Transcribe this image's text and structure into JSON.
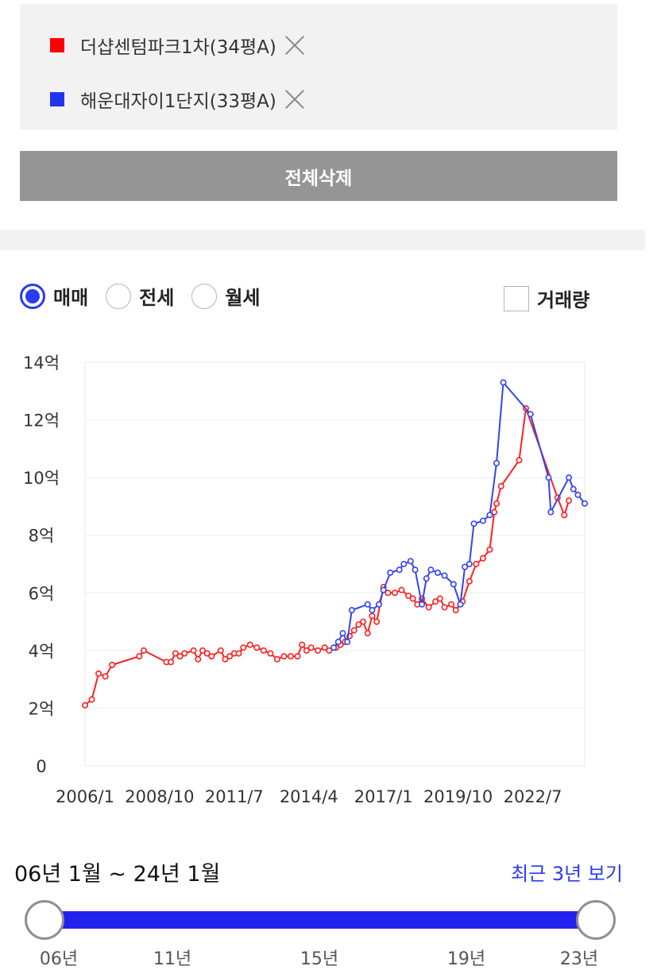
{
  "compare": {
    "items": [
      {
        "label": "더샵센텀파크1차(34평A)",
        "color": "#ff0000"
      },
      {
        "label": "해운대자이1단지(33평A)",
        "color": "#2233ee"
      }
    ],
    "delete_all_label": "전체삭제"
  },
  "options": {
    "radios": [
      {
        "label": "매매",
        "selected": true
      },
      {
        "label": "전세",
        "selected": false
      },
      {
        "label": "월세",
        "selected": false
      }
    ],
    "volume_label": "거래량",
    "volume_checked": false
  },
  "chart_data": {
    "type": "line",
    "y_ticks": [
      "0",
      "2억",
      "4억",
      "6억",
      "8억",
      "10억",
      "12억",
      "14억"
    ],
    "ylim": [
      0,
      14
    ],
    "x_ticks": [
      "2006/1",
      "2008/10",
      "2011/7",
      "2014/4",
      "2017/1",
      "2019/10",
      "2022/7"
    ],
    "xlim": [
      "2006/1",
      "2024/1"
    ],
    "grid": true,
    "series": [
      {
        "name": "더샵센텀파크1차(34평A)",
        "color": "#ff2020",
        "points": [
          [
            "2006/1",
            2.1
          ],
          [
            "2006/4",
            2.3
          ],
          [
            "2006/7",
            3.2
          ],
          [
            "2006/10",
            3.1
          ],
          [
            "2007/1",
            3.5
          ],
          [
            "2008/1",
            3.8
          ],
          [
            "2008/3",
            4.0
          ],
          [
            "2009/1",
            3.6
          ],
          [
            "2009/3",
            3.6
          ],
          [
            "2009/5",
            3.9
          ],
          [
            "2009/7",
            3.8
          ],
          [
            "2009/9",
            3.9
          ],
          [
            "2010/1",
            4.0
          ],
          [
            "2010/3",
            3.7
          ],
          [
            "2010/5",
            4.0
          ],
          [
            "2010/7",
            3.9
          ],
          [
            "2010/9",
            3.8
          ],
          [
            "2011/1",
            4.0
          ],
          [
            "2011/3",
            3.7
          ],
          [
            "2011/5",
            3.8
          ],
          [
            "2011/7",
            3.9
          ],
          [
            "2011/9",
            3.9
          ],
          [
            "2011/11",
            4.1
          ],
          [
            "2012/2",
            4.2
          ],
          [
            "2012/5",
            4.1
          ],
          [
            "2012/8",
            4.0
          ],
          [
            "2012/11",
            3.9
          ],
          [
            "2013/2",
            3.7
          ],
          [
            "2013/5",
            3.8
          ],
          [
            "2013/8",
            3.8
          ],
          [
            "2013/11",
            3.8
          ],
          [
            "2014/1",
            4.2
          ],
          [
            "2014/3",
            4.0
          ],
          [
            "2014/5",
            4.1
          ],
          [
            "2014/8",
            4.0
          ],
          [
            "2014/11",
            4.1
          ],
          [
            "2015/1",
            4.0
          ],
          [
            "2015/4",
            4.1
          ],
          [
            "2015/6",
            4.2
          ],
          [
            "2015/8",
            4.3
          ],
          [
            "2015/10",
            4.5
          ],
          [
            "2015/12",
            4.7
          ],
          [
            "2016/2",
            4.9
          ],
          [
            "2016/4",
            5.0
          ],
          [
            "2016/6",
            4.6
          ],
          [
            "2016/8",
            5.2
          ],
          [
            "2016/10",
            5.0
          ],
          [
            "2017/1",
            6.2
          ],
          [
            "2017/3",
            6.0
          ],
          [
            "2017/6",
            6.0
          ],
          [
            "2017/9",
            6.1
          ],
          [
            "2017/12",
            5.9
          ],
          [
            "2018/2",
            5.8
          ],
          [
            "2018/4",
            5.6
          ],
          [
            "2018/6",
            5.8
          ],
          [
            "2018/9",
            5.5
          ],
          [
            "2018/12",
            5.7
          ],
          [
            "2019/2",
            5.8
          ],
          [
            "2019/4",
            5.5
          ],
          [
            "2019/7",
            5.6
          ],
          [
            "2019/9",
            5.4
          ],
          [
            "2019/12",
            5.7
          ],
          [
            "2020/3",
            6.4
          ],
          [
            "2020/6",
            7.0
          ],
          [
            "2020/9",
            7.2
          ],
          [
            "2020/12",
            7.5
          ],
          [
            "2021/2",
            8.8
          ],
          [
            "2021/3",
            9.1
          ],
          [
            "2021/5",
            9.7
          ],
          [
            "2022/1",
            10.6
          ],
          [
            "2022/4",
            12.4
          ],
          [
            "2023/6",
            9.3
          ],
          [
            "2023/9",
            8.7
          ],
          [
            "2023/11",
            9.2
          ]
        ]
      },
      {
        "name": "해운대자이1단지(33평A)",
        "color": "#3344ee",
        "points": [
          [
            "2015/3",
            4.1
          ],
          [
            "2015/5",
            4.3
          ],
          [
            "2015/7",
            4.6
          ],
          [
            "2015/9",
            4.3
          ],
          [
            "2015/11",
            5.4
          ],
          [
            "2016/6",
            5.6
          ],
          [
            "2016/8",
            5.4
          ],
          [
            "2016/11",
            5.6
          ],
          [
            "2017/1",
            6.1
          ],
          [
            "2017/4",
            6.7
          ],
          [
            "2017/8",
            6.8
          ],
          [
            "2017/10",
            7.0
          ],
          [
            "2018/1",
            7.1
          ],
          [
            "2018/3",
            6.8
          ],
          [
            "2018/6",
            5.6
          ],
          [
            "2018/8",
            6.5
          ],
          [
            "2018/10",
            6.8
          ],
          [
            "2019/1",
            6.7
          ],
          [
            "2019/4",
            6.6
          ],
          [
            "2019/8",
            6.3
          ],
          [
            "2019/11",
            5.6
          ],
          [
            "2020/1",
            6.9
          ],
          [
            "2020/3",
            7.0
          ],
          [
            "2020/5",
            8.4
          ],
          [
            "2020/9",
            8.5
          ],
          [
            "2020/12",
            8.7
          ],
          [
            "2021/3",
            10.5
          ],
          [
            "2021/6",
            13.3
          ],
          [
            "2022/6",
            12.2
          ],
          [
            "2023/2",
            10.0
          ],
          [
            "2023/3",
            8.8
          ],
          [
            "2023/11",
            10.0
          ],
          [
            "2024/1",
            9.6
          ],
          [
            "2024/3",
            9.4
          ],
          [
            "2024/6",
            9.1
          ]
        ]
      }
    ]
  },
  "range": {
    "label": "06년 1월 ~ 24년 1월",
    "recent_link": "최근 3년 보기",
    "ticks": [
      "06년",
      "11년",
      "15년",
      "19년",
      "23년"
    ]
  }
}
